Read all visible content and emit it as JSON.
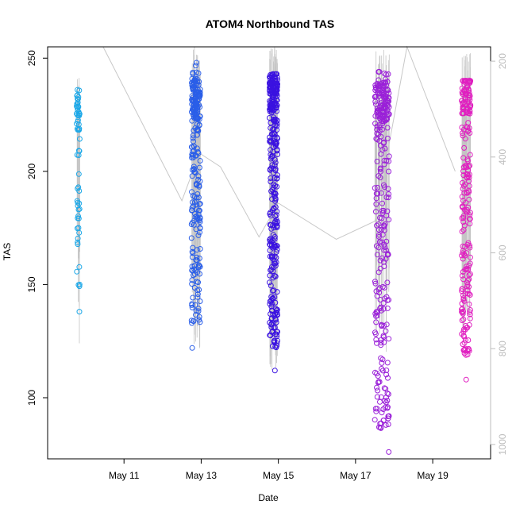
{
  "chart_data": {
    "type": "scatter",
    "title": "ATOM4 Northbound TAS",
    "xlabel": "Date",
    "ylabel": "TAS",
    "xlim": [
      "2016-05-09T00:30",
      "2016-05-20T12:00"
    ],
    "ylim": [
      73,
      255
    ],
    "x_ticks": [
      {
        "value": "2016-05-11",
        "label": "May 11"
      },
      {
        "value": "2016-05-13",
        "label": "May 13"
      },
      {
        "value": "2016-05-15",
        "label": "May 15"
      },
      {
        "value": "2016-05-17",
        "label": "May 17"
      },
      {
        "value": "2016-05-19",
        "label": "May 19"
      }
    ],
    "y_ticks": [
      100,
      150,
      200,
      250
    ],
    "right_axis": {
      "ticks": [
        200,
        400,
        600,
        800,
        1000
      ],
      "ylim": [
        1030,
        170
      ],
      "color": "#bdbdbd"
    },
    "grid": false,
    "legend": "none",
    "flights": [
      {
        "name": "May 9",
        "date": "2016-05-09",
        "hours": [
          18.5,
          20.5
        ],
        "color": "#1ca8e8",
        "tas_range": [
          138,
          236
        ],
        "n_points": 60,
        "lines_top": 247,
        "lines_bottom": 116,
        "cluster_center": 225,
        "cluster_frac": 0.35
      },
      {
        "name": "May 12",
        "date": "2016-05-12",
        "hours": [
          18.0,
          23.5
        ],
        "color": "#2a5ee8",
        "tas_range": [
          122,
          248
        ],
        "n_points": 260,
        "lines_top": 255,
        "lines_bottom": 120,
        "cluster_center": 232,
        "cluster_frac": 0.3
      },
      {
        "name": "May 14",
        "date": "2016-05-14",
        "hours": [
          18.5,
          23.5
        ],
        "color": "#3a12e0",
        "tas_range": [
          112,
          243
        ],
        "n_points": 330,
        "lines_top": 255,
        "lines_bottom": 112,
        "cluster_center": 235,
        "cluster_frac": 0.25
      },
      {
        "name": "May 17",
        "date": "2016-05-17",
        "hours": [
          12.0,
          21.0
        ],
        "color": "#9a20d8",
        "tas_range": [
          76,
          244
        ],
        "n_points": 300,
        "lines_top": 255,
        "lines_bottom": 120,
        "cluster_center": 230,
        "cluster_frac": 0.3
      },
      {
        "name": "May 19",
        "date": "2016-05-19",
        "hours": [
          18.0,
          23.5
        ],
        "color": "#e020c0",
        "tas_range": [
          108,
          240
        ],
        "n_points": 230,
        "lines_top": 255,
        "lines_bottom": 130,
        "cluster_center": 234,
        "cluster_frac": 0.3
      }
    ],
    "connector_line": {
      "color": "#c8c8c8",
      "points": [
        [
          "2016-05-10T11:00",
          255
        ],
        [
          "2016-05-12T12:00",
          187
        ],
        [
          "2016-05-12T23:00",
          208
        ],
        [
          "2016-05-13T12:00",
          202
        ],
        [
          "2016-05-14T12:00",
          171
        ],
        [
          "2016-05-15T00:00",
          186
        ],
        [
          "2016-05-16T12:00",
          170
        ],
        [
          "2016-05-17T12:00",
          178
        ],
        [
          "2016-05-18T08:00",
          256
        ],
        [
          "2016-05-19T14:00",
          200
        ]
      ]
    }
  }
}
